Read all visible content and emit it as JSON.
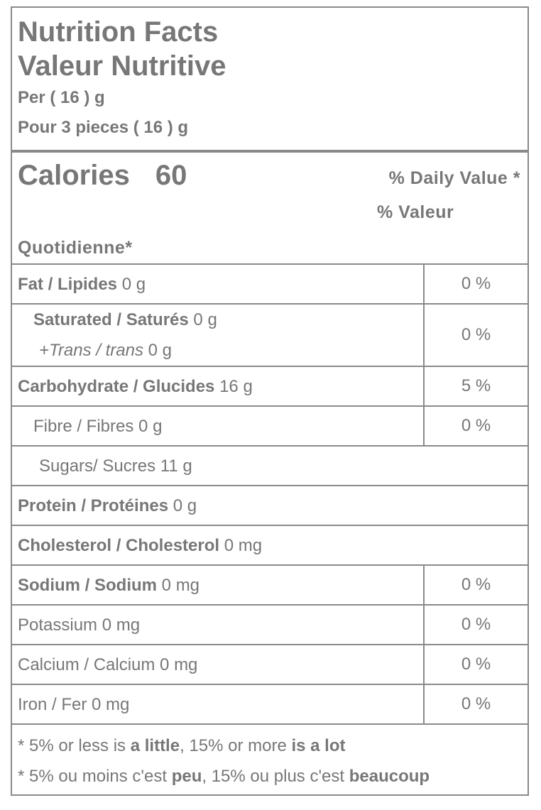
{
  "header": {
    "title_en": "Nutrition Facts",
    "title_fr": "Valeur Nutritive",
    "serving_en": "Per ( 16 ) g",
    "serving_fr": "Pour 3 pieces ( 16 ) g"
  },
  "calories": {
    "label": "Calories",
    "value": 60,
    "dv_en": "% Daily Value *",
    "dv_fr": "% Valeur",
    "dv_fr_2": "Quotidienne*"
  },
  "rows": [
    {
      "level": 0,
      "lines": [
        {
          "label": "Fat / Lipides",
          "amount": "0 g",
          "style": "bold"
        }
      ],
      "dv": "0 %"
    },
    {
      "level": 1,
      "lines": [
        {
          "label": "Saturated / Saturés",
          "amount": "0 g",
          "style": "bold"
        },
        {
          "label": "+Trans / trans",
          "amount": "0 g",
          "style": "italic"
        }
      ],
      "dv": "0 %"
    },
    {
      "level": 0,
      "lines": [
        {
          "label": "Carbohydrate / Glucides",
          "amount": "16 g",
          "style": "bold"
        }
      ],
      "dv": "5 %"
    },
    {
      "level": 1,
      "lines": [
        {
          "label": "Fibre / Fibres",
          "amount": "0 g",
          "style": "normal"
        }
      ],
      "dv": "0 %"
    },
    {
      "level": 2,
      "lines": [
        {
          "label": "Sugars/ Sucres",
          "amount": "11 g",
          "style": "normal"
        }
      ]
    },
    {
      "level": 0,
      "lines": [
        {
          "label": "Protein / Protéines",
          "amount": "0 g",
          "style": "bold"
        }
      ]
    },
    {
      "level": 0,
      "lines": [
        {
          "label": "Cholesterol / Cholesterol",
          "amount": "0 mg",
          "style": "bold"
        }
      ]
    },
    {
      "level": 0,
      "lines": [
        {
          "label": "Sodium / Sodium",
          "amount": "0 mg",
          "style": "bold"
        }
      ],
      "dv": "0 %"
    },
    {
      "level": 0,
      "lines": [
        {
          "label": "Potassium",
          "amount": "0 mg",
          "style": "normal"
        }
      ],
      "dv": "0 %"
    },
    {
      "level": 0,
      "lines": [
        {
          "label": "Calcium / Calcium",
          "amount": "0 mg",
          "style": "normal"
        }
      ],
      "dv": "0 %"
    },
    {
      "level": 0,
      "lines": [
        {
          "label": "Iron / Fer",
          "amount": "0 mg",
          "style": "normal"
        }
      ],
      "dv": "0 %"
    }
  ],
  "footnotes": [
    [
      {
        "text": "* 5% or less is ",
        "bold": false
      },
      {
        "text": "a little",
        "bold": true
      },
      {
        "text": ", 15% or more ",
        "bold": false
      },
      {
        "text": "is a lot",
        "bold": true
      }
    ],
    [
      {
        "text": "* 5% ou moins c'est ",
        "bold": false
      },
      {
        "text": "peu",
        "bold": true
      },
      {
        "text": ", 15% ou plus c'est ",
        "bold": false
      },
      {
        "text": "beaucoup",
        "bold": true
      }
    ]
  ]
}
